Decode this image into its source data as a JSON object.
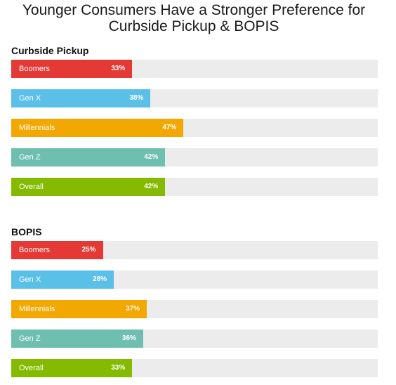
{
  "chart_data": {
    "type": "bar",
    "title": "Younger Consumers Have a Stronger Preference for Curbside Pickup & BOPIS",
    "title_lines": [
      "Younger Consumers Have a Stronger Preference for",
      "Curbside Pickup & BOPIS"
    ],
    "xlim": [
      0,
      100
    ],
    "grid": false,
    "orientation": "horizontal",
    "groups": [
      {
        "name": "Curbside Pickup",
        "categories": [
          "Boomers",
          "Gen X",
          "Millennials",
          "Gen Z",
          "Overall"
        ],
        "values": [
          33,
          38,
          47,
          42,
          42
        ],
        "labels": [
          "33%",
          "38%",
          "47%",
          "42%",
          "42%"
        ]
      },
      {
        "name": "BOPIS",
        "categories": [
          "Boomers",
          "Gen X",
          "Millennials",
          "Gen Z",
          "Overall"
        ],
        "values": [
          25,
          28,
          37,
          36,
          33
        ],
        "labels": [
          "25%",
          "28%",
          "37%",
          "36%",
          "33%"
        ]
      }
    ],
    "colors": {
      "Boomers": "#e53935",
      "Gen X": "#5bc0e8",
      "Millennials": "#f2a800",
      "Gen Z": "#6fbfb0",
      "Overall": "#84bb00"
    },
    "track_color": "#ececec"
  }
}
